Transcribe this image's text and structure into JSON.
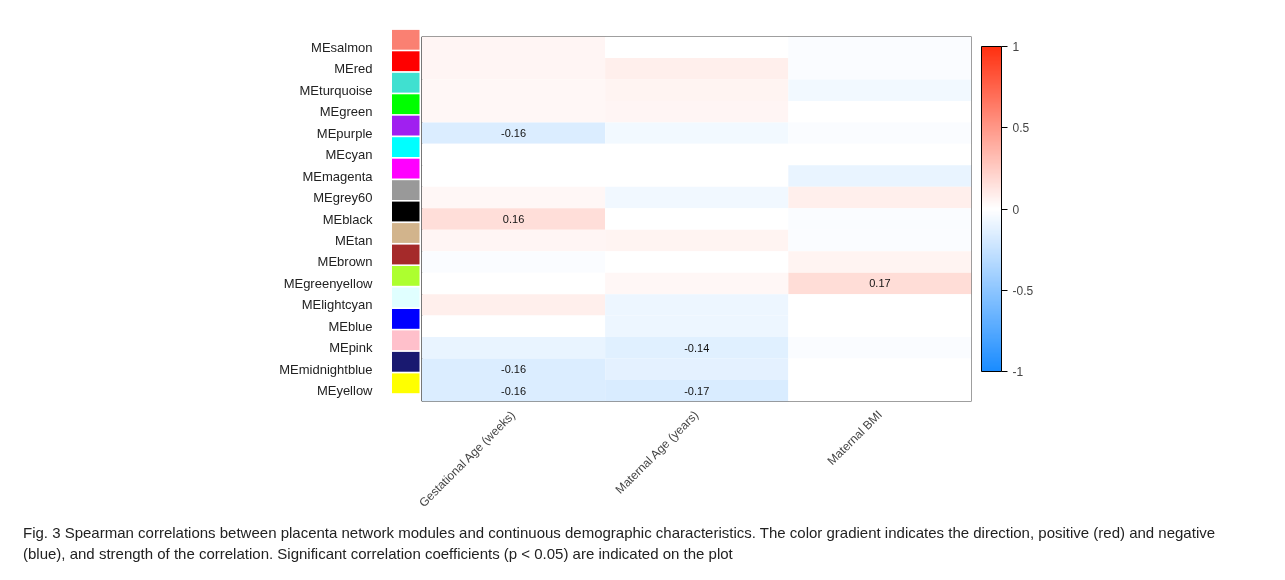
{
  "chart_data": {
    "type": "heatmap",
    "categories": [
      "Gestational Age (weeks)",
      "Maternal Age (years)",
      "Maternal BMI"
    ],
    "y_categories": [
      "MEsalmon",
      "MEred",
      "MEturquoise",
      "MEgreen",
      "MEpurple",
      "MEcyan",
      "MEmagenta",
      "MEgrey60",
      "MEblack",
      "MEtan",
      "MEbrown",
      "MEgreenyellow",
      "MElightcyan",
      "MEblue",
      "MEpink",
      "MEmidnightblue",
      "MEyellow"
    ],
    "colors": [
      "#fa8072",
      "#ff0000",
      "#40e0d0",
      "#00ff00",
      "#a020f0",
      "#00ffff",
      "#ff00ff",
      "#999999",
      "#000000",
      "#d2b48c",
      "#a52a2a",
      "#adff2f",
      "#e0ffff",
      "#0000ff",
      "#ffc0cb",
      "#191970",
      "#ffff00"
    ],
    "cells": [
      [
        0.05,
        0,
        -0.03
      ],
      [
        0.05,
        0.08,
        -0.03
      ],
      [
        0.04,
        0.06,
        -0.06
      ],
      [
        0.04,
        0.05,
        0
      ],
      [
        -0.16,
        -0.06,
        -0.03
      ],
      [
        0,
        0,
        0
      ],
      [
        0,
        0,
        -0.1
      ],
      [
        0.04,
        -0.07,
        0.08
      ],
      [
        0.16,
        0,
        -0.03
      ],
      [
        0.05,
        0.06,
        -0.03
      ],
      [
        -0.03,
        0,
        0.06
      ],
      [
        0,
        0.04,
        0.17
      ],
      [
        0.08,
        -0.08,
        0
      ],
      [
        0,
        -0.08,
        0
      ],
      [
        -0.1,
        -0.14,
        -0.03
      ],
      [
        -0.16,
        -0.12,
        0
      ],
      [
        -0.16,
        -0.17,
        0
      ]
    ],
    "cell_labels": [
      [
        null,
        null,
        null
      ],
      [
        null,
        null,
        null
      ],
      [
        null,
        null,
        null
      ],
      [
        null,
        null,
        null
      ],
      [
        "-0.16",
        null,
        null
      ],
      [
        null,
        null,
        null
      ],
      [
        null,
        null,
        null
      ],
      [
        null,
        null,
        null
      ],
      [
        "0.16",
        null,
        null
      ],
      [
        null,
        null,
        null
      ],
      [
        null,
        null,
        null
      ],
      [
        null,
        null,
        "0.17"
      ],
      [
        null,
        null,
        null
      ],
      [
        null,
        null,
        null
      ],
      [
        null,
        "-0.14",
        null
      ],
      [
        "-0.16",
        null,
        null
      ],
      [
        "-0.16",
        "-0.17",
        null
      ]
    ],
    "clim": [
      -1,
      1
    ],
    "cticks": [
      -1,
      -0.5,
      0,
      0.5,
      1
    ],
    "annotations": [
      "Fig. 3 Spearman correlations between placenta network modules and continuous demographic characteristics. The color gradient indicates the direction, positive (red) and negative (blue), and strength of the correlation. Significant correlation coefficients (p < 0.05) are indicated on the plot"
    ]
  }
}
